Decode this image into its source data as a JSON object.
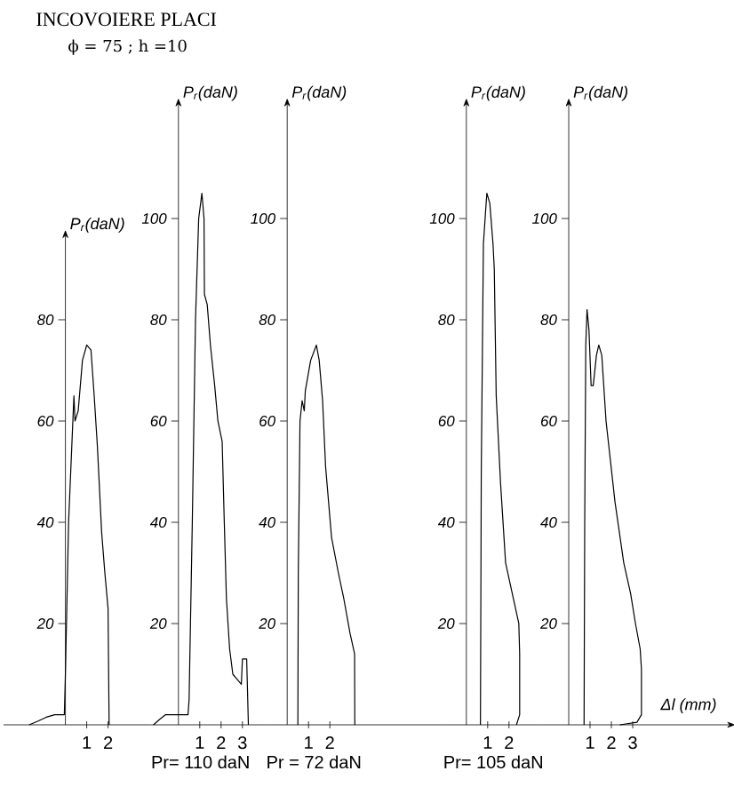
{
  "chart_data": [
    {
      "type": "line",
      "title": "INCOVOIERE PLACI",
      "subtitle": "ϕ = 75 ; h =10",
      "ylabel": "P$_{r}$(daN)",
      "color": "#000000",
      "x": [
        -1.7,
        -1.3,
        -0.9,
        -0.5,
        -0.05,
        0.0,
        0.15,
        0.3,
        0.4,
        0.45,
        0.6,
        0.8,
        1.0,
        1.2,
        1.35,
        1.5,
        1.7,
        1.85,
        2.0,
        2.05
      ],
      "values": [
        0,
        0.7,
        1.5,
        2,
        2,
        10,
        40,
        55,
        65,
        60,
        62,
        72,
        75,
        74,
        65,
        55,
        38,
        30,
        23,
        0
      ],
      "xlim": [
        -2.9,
        4.0
      ],
      "ylim": [
        0,
        96
      ],
      "xticks": [
        1,
        2
      ],
      "yticks": [
        20,
        40,
        60,
        80
      ]
    },
    {
      "type": "line",
      "ylabel": "P$_{r}$(daN)",
      "color": "#000000",
      "annotations": [
        "Pr= 110 daN"
      ],
      "x": [
        -1.17,
        -0.9,
        -0.6,
        -0.4,
        0.45,
        0.5,
        0.65,
        0.8,
        0.95,
        1.1,
        1.2,
        1.22,
        1.35,
        1.5,
        1.7,
        1.85,
        2.05,
        2.15,
        2.25,
        2.4,
        2.55,
        2.95,
        3.0,
        3.2,
        3.28
      ],
      "values": [
        0,
        1,
        2,
        2,
        2,
        5,
        40,
        80,
        100,
        105,
        100,
        85,
        83,
        75,
        67,
        60,
        56,
        40,
        25,
        15,
        10,
        8,
        13,
        13,
        0
      ],
      "xlim": [
        -1.3,
        4.1
      ],
      "ylim": [
        0,
        122
      ],
      "xticks": [
        1,
        2,
        3
      ],
      "yticks": [
        20,
        40,
        60,
        80,
        100
      ]
    },
    {
      "type": "line",
      "ylabel": "P$_{r}$(daN)",
      "color": "#000000",
      "annotations": [
        "Pr = 72 daN"
      ],
      "x": [
        0.5,
        0.52,
        0.6,
        0.7,
        0.8,
        0.85,
        1.1,
        1.37,
        1.5,
        1.66,
        1.8,
        2.08,
        2.4,
        2.65,
        2.95,
        3.16,
        3.17
      ],
      "values": [
        0,
        30,
        60,
        64,
        62,
        66,
        72,
        75,
        72,
        64,
        51,
        37,
        30,
        25,
        18,
        14,
        0
      ],
      "xlim": [
        -1.0,
        7.3
      ],
      "ylim": [
        0,
        122
      ],
      "xticks": [
        1,
        2
      ],
      "yticks": [
        20,
        40,
        60,
        80,
        100
      ]
    },
    {
      "type": "line",
      "ylabel": "P$_{r}$(daN)",
      "color": "#000000",
      "annotations": [
        "Pr= 105 daN"
      ],
      "x": [
        0.66,
        0.7,
        0.8,
        0.96,
        1.1,
        1.25,
        1.31,
        1.4,
        1.6,
        1.84,
        2.2,
        2.46,
        2.5,
        2.5,
        2.35
      ],
      "values": [
        0,
        50,
        95,
        105,
        103,
        95,
        90,
        65,
        48,
        32,
        25,
        20,
        14,
        2,
        0
      ],
      "xlim": [
        -1.1,
        3.5
      ],
      "ylim": [
        0,
        122
      ],
      "xticks": [
        1,
        2
      ],
      "yticks": [
        20,
        40,
        60,
        80,
        100
      ]
    },
    {
      "type": "line",
      "ylabel": "P$_{r}$(daN)",
      "xlabel": "Δl (mm)",
      "color": "#000000",
      "x": [
        0.72,
        0.75,
        0.8,
        0.86,
        0.95,
        1.05,
        1.15,
        1.3,
        1.41,
        1.55,
        1.75,
        2.17,
        2.58,
        2.9,
        3.13,
        3.35,
        3.41,
        3.41,
        3.2,
        2.4
      ],
      "values": [
        0,
        40,
        75,
        82,
        78,
        67,
        67,
        73,
        75,
        73,
        60,
        44,
        32,
        26,
        20,
        15,
        11,
        2,
        0.5,
        0
      ],
      "xlim": [
        -1.3,
        7.4
      ],
      "ylim": [
        0,
        122
      ],
      "xticks": [
        1,
        2,
        3
      ],
      "yticks": [
        20,
        40,
        60,
        80,
        100
      ]
    }
  ]
}
